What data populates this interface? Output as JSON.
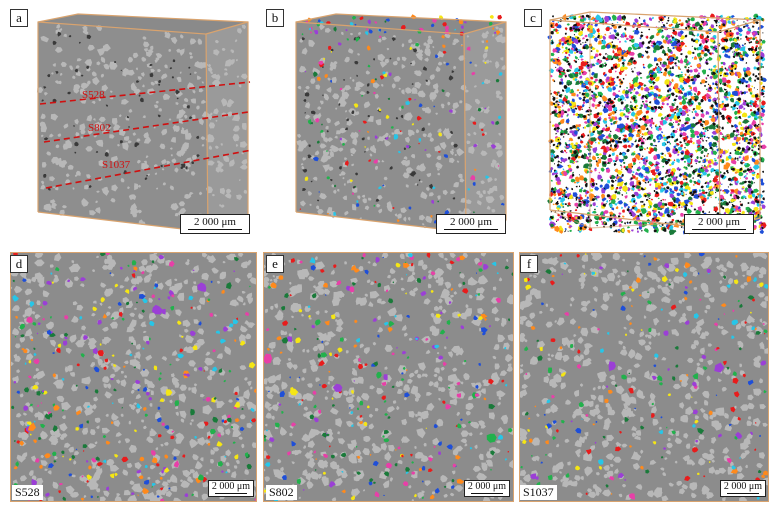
{
  "panels": {
    "a": {
      "label": "a",
      "scale": "2 000 μm",
      "sections": [
        "S528",
        "S802",
        "S1037"
      ]
    },
    "b": {
      "label": "b",
      "scale": "2 000 μm"
    },
    "c": {
      "label": "c",
      "scale": "2 000 μm"
    },
    "d": {
      "label": "d",
      "scale": "2 000 μm",
      "section": "S528"
    },
    "e": {
      "label": "e",
      "scale": "2 000 μm",
      "section": "S802"
    },
    "f": {
      "label": "f",
      "scale": "2 000 μm",
      "section": "S1037"
    }
  },
  "colors": {
    "rock": "#8c8c8c",
    "rock_light": "#b8b8b8",
    "edge": "#d9a36e",
    "cut_line": "#d01010",
    "pores": [
      "#1f4fd8",
      "#e81c1c",
      "#22b14c",
      "#f5e614",
      "#26c6e8",
      "#9b3fd6",
      "#ff8a1c",
      "#e83fa8",
      "#1a7a3a"
    ]
  }
}
